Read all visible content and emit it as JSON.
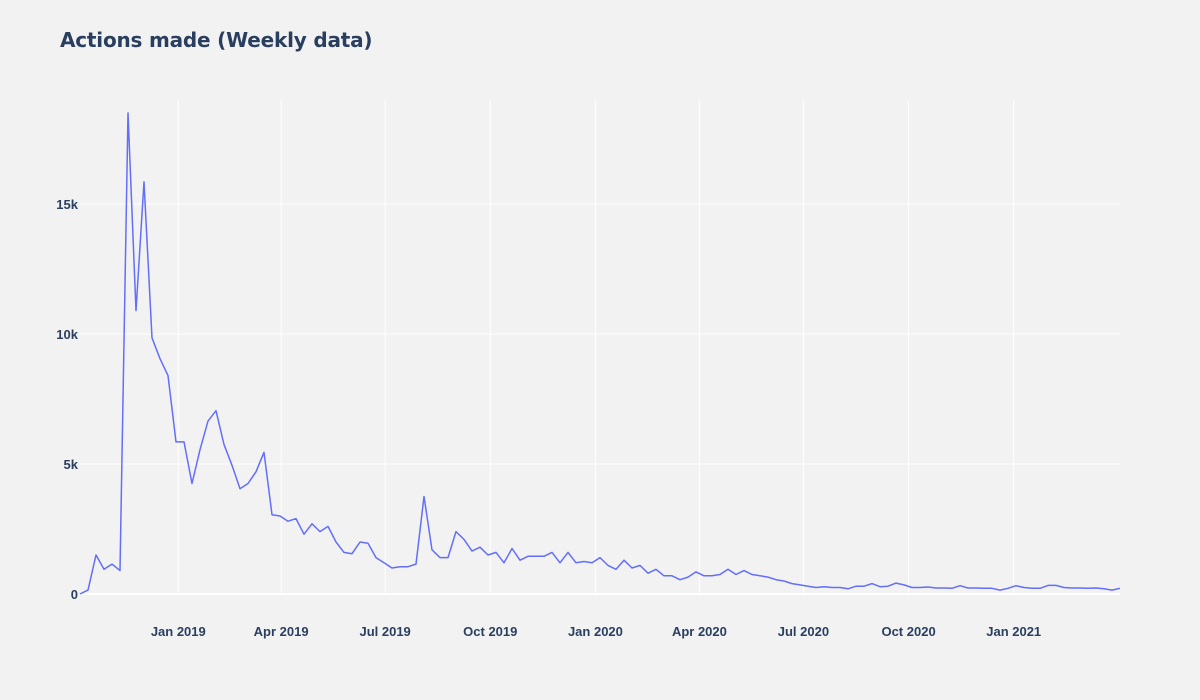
{
  "chart_data": {
    "type": "line",
    "title": "Actions made (Weekly data)",
    "xlabel": "",
    "ylabel": "",
    "x_start": "2018-10-07",
    "x_step_days": 7,
    "x_range": [
      "2018-10-07",
      "2021-04-04"
    ],
    "ylim": [
      0,
      19000
    ],
    "grid": true,
    "line_color": "#636efa",
    "x_ticks": [
      {
        "date": "2019-01-01",
        "label": "Jan 2019"
      },
      {
        "date": "2019-04-01",
        "label": "Apr 2019"
      },
      {
        "date": "2019-07-01",
        "label": "Jul 2019"
      },
      {
        "date": "2019-10-01",
        "label": "Oct 2019"
      },
      {
        "date": "2020-01-01",
        "label": "Jan 2020"
      },
      {
        "date": "2020-04-01",
        "label": "Apr 2020"
      },
      {
        "date": "2020-07-01",
        "label": "Jul 2020"
      },
      {
        "date": "2020-10-01",
        "label": "Oct 2020"
      },
      {
        "date": "2021-01-01",
        "label": "Jan 2021"
      }
    ],
    "y_ticks": [
      {
        "value": 0,
        "label": "0"
      },
      {
        "value": 5000,
        "label": "5k"
      },
      {
        "value": 10000,
        "label": "10k"
      },
      {
        "value": 15000,
        "label": "15k"
      }
    ],
    "series": [
      {
        "values": [
          0,
          150,
          1500,
          950,
          1150,
          900,
          18500,
          10900,
          15850,
          9850,
          9050,
          8400,
          5850,
          5850,
          4250,
          5550,
          6650,
          7050,
          5750,
          4950,
          4050,
          4250,
          4700,
          5450,
          3050,
          3000,
          2800,
          2900,
          2300,
          2700,
          2400,
          2600,
          2000,
          1600,
          1550,
          2000,
          1950,
          1400,
          1200,
          1000,
          1050,
          1050,
          1150,
          3750,
          1700,
          1400,
          1400,
          2400,
          2100,
          1650,
          1800,
          1500,
          1600,
          1200,
          1750,
          1300,
          1450,
          1450,
          1450,
          1600,
          1200,
          1600,
          1200,
          1250,
          1200,
          1400,
          1100,
          950,
          1300,
          1000,
          1100,
          800,
          950,
          700,
          700,
          550,
          650,
          850,
          700,
          700,
          750,
          950,
          750,
          900,
          750,
          700,
          650,
          550,
          500,
          400,
          350,
          300,
          250,
          280,
          250,
          250,
          200,
          300,
          300,
          400,
          280,
          300,
          420,
          350,
          250,
          250,
          270,
          230,
          230,
          220,
          320,
          230,
          230,
          220,
          220,
          150,
          220,
          320,
          250,
          220,
          220,
          330,
          330,
          250,
          230,
          230,
          220,
          230,
          200,
          150,
          220
        ]
      }
    ]
  }
}
